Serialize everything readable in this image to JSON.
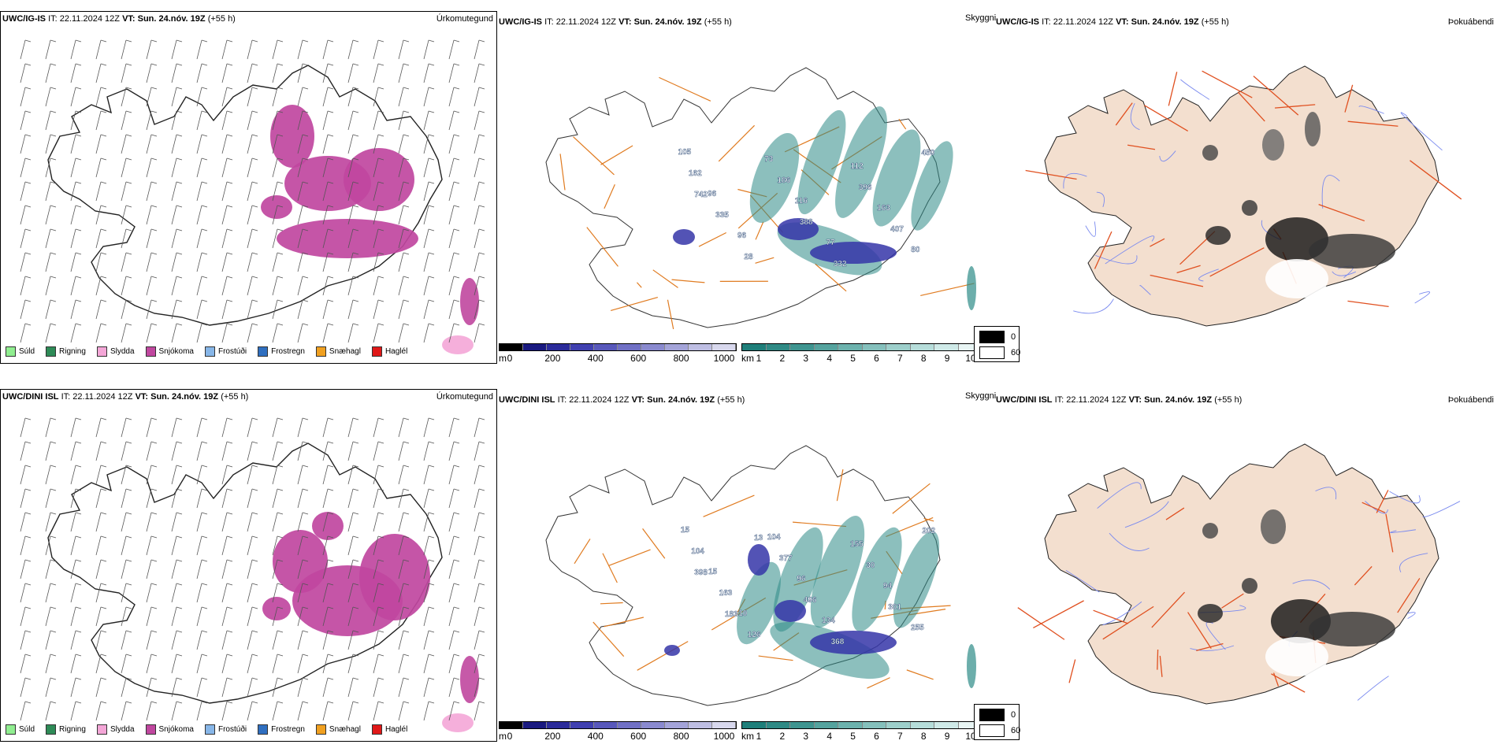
{
  "rows": [
    {
      "model": "UWC/IG-IS",
      "it_label": "IT:",
      "it": "22.11.2024 12Z",
      "vt_label": "VT:",
      "vt": "Sun. 24.nóv. 19Z",
      "lead": "(+55 h)",
      "precip_title": "Úrkomutegund",
      "vis_title": "Skyggni",
      "fog_title": "Þokuábendi",
      "labels": [
        "105",
        "96",
        "96",
        "73",
        "116",
        "77",
        "112",
        "163",
        "80",
        "162",
        "335",
        "28",
        "186",
        "388",
        "332",
        "396",
        "407",
        "450",
        "742"
      ]
    },
    {
      "model": "UWC/DINI ISL",
      "it_label": "IT:",
      "it": "22.11.2024 12Z",
      "vt_label": "VT:",
      "vt": "Sun. 24.nóv. 19Z",
      "lead": "(+55 h)",
      "precip_title": "Úrkomutegund",
      "vis_title": "Skyggni",
      "fog_title": "Þokuábendi",
      "labels": [
        "15",
        "15",
        "10",
        "104",
        "96",
        "134",
        "155",
        "94",
        "255",
        "104",
        "163",
        "126",
        "377",
        "496",
        "368",
        "30",
        "301",
        "202",
        "398",
        "183",
        "13"
      ]
    }
  ],
  "precip_legend": [
    {
      "label": "Súld",
      "color": "#90ee90"
    },
    {
      "label": "Rigning",
      "color": "#2e8b57"
    },
    {
      "label": "Slydda",
      "color": "#f4a6d7"
    },
    {
      "label": "Snjókoma",
      "color": "#c0479f"
    },
    {
      "label": "Frostúði",
      "color": "#87b6e8"
    },
    {
      "label": "Frostregn",
      "color": "#2f6fc0"
    },
    {
      "label": "Snæhagl",
      "color": "#f0a020"
    },
    {
      "label": "Haglél",
      "color": "#e01818"
    }
  ],
  "cloud_base_scale": {
    "unit": "m",
    "ticks": [
      "0",
      "200",
      "400",
      "600",
      "800",
      "1000"
    ],
    "colors": [
      "#000000",
      "#1a1a80",
      "#2b2b9a",
      "#4040b0",
      "#5858bb",
      "#7070c5",
      "#8a8acf",
      "#a4a4d9",
      "#bebee3",
      "#d8d8ed"
    ]
  },
  "vis_scale": {
    "unit": "km",
    "ticks": [
      "1",
      "2",
      "3",
      "4",
      "5",
      "6",
      "7",
      "8",
      "9",
      "10"
    ],
    "colors": [
      "#1f7f7a",
      "#2f8a85",
      "#3f9590",
      "#55a39e",
      "#6cb2ad",
      "#85c0bc",
      "#9dcfcb",
      "#b6ddda",
      "#cfeae8",
      "#e8f5f4"
    ]
  },
  "fog_scale": {
    "ticks": [
      "0",
      "60"
    ],
    "colors": [
      "#000000",
      "#ffffff"
    ]
  },
  "colors": {
    "snow": "#c0479f",
    "sleet": "#f4a6d7",
    "teal": "#2e8b87",
    "blue": "#3535a8",
    "road": "#e07b20",
    "fog_land": "#f3dfcf",
    "fog_road": "#e05020",
    "fog_river": "#7a8aef"
  }
}
